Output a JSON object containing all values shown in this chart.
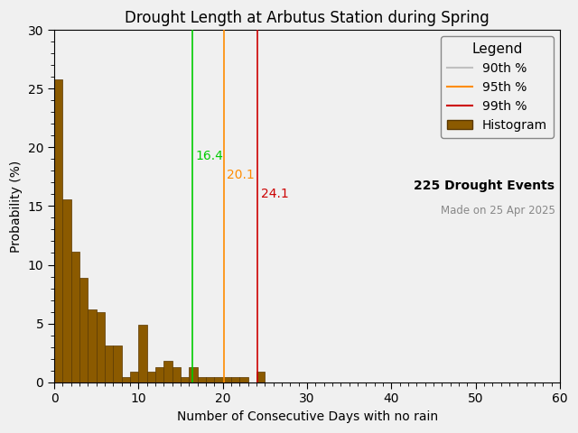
{
  "title": "Drought Length at Arbutus Station during Spring",
  "xlabel": "Number of Consecutive Days with no rain",
  "ylabel": "Probability (%)",
  "bar_color": "#8B5A00",
  "bar_edge_color": "#5A3800",
  "xlim": [
    0,
    60
  ],
  "ylim": [
    0,
    30
  ],
  "xticks": [
    0,
    10,
    20,
    30,
    40,
    50,
    60
  ],
  "yticks": [
    0,
    5,
    10,
    15,
    20,
    25,
    30
  ],
  "percentile_90": 16.4,
  "percentile_95": 20.1,
  "percentile_99": 24.1,
  "percentile_90_color": "#00CC00",
  "percentile_95_color": "#FF8C00",
  "percentile_99_color": "#CC0000",
  "percentile_90_legend_color": "#C0C0C0",
  "percentile_95_legend_color": "#FF8C00",
  "percentile_99_legend_color": "#CC0000",
  "n_events": "225 Drought Events",
  "made_on": "Made on 25 Apr 2025",
  "hist_bins_left": [
    0,
    1,
    2,
    3,
    4,
    5,
    6,
    7,
    8,
    9,
    10,
    11,
    12,
    13,
    14,
    15,
    16,
    17,
    18,
    19,
    20,
    21,
    22,
    23,
    24,
    25,
    26,
    27,
    28,
    29,
    30
  ],
  "hist_values": [
    25.8,
    15.6,
    11.1,
    8.9,
    6.2,
    6.0,
    3.1,
    3.1,
    0.4,
    0.9,
    4.9,
    0.9,
    1.3,
    1.8,
    1.3,
    0.4,
    1.3,
    0.4,
    0.4,
    0.4,
    0.4,
    0.4,
    0.4,
    0.0,
    0.9,
    0.0,
    0.0,
    0.0,
    0.0,
    0.0,
    0.0
  ],
  "background_color": "#F0F0F0",
  "axes_bg_color": "#F0F0F0",
  "title_fontsize": 12,
  "label_fontsize": 10,
  "tick_fontsize": 10,
  "legend_fontsize": 10,
  "annotation_fontsize": 10
}
